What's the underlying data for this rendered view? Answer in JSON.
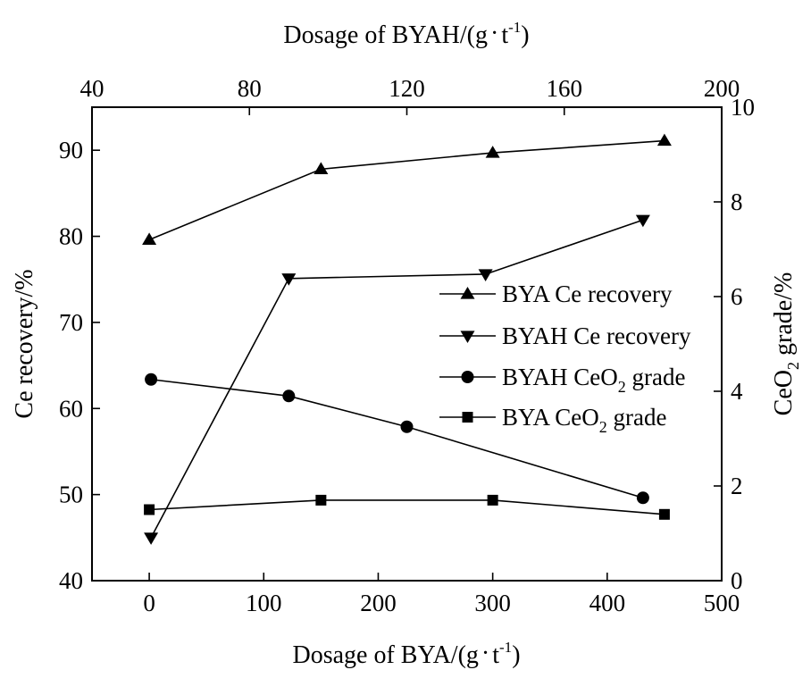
{
  "chart_data": {
    "type": "line",
    "axes": {
      "bottom": {
        "label_main": "Dosage of BYA/(g",
        "label_unit_base": "t",
        "label_unit_sup": "-1",
        "label_close": ")",
        "range": [
          -50,
          500
        ],
        "ticks": [
          0,
          100,
          200,
          300,
          400,
          500
        ],
        "tick_labels": [
          "0",
          "100",
          "200",
          "300",
          "400",
          "500"
        ]
      },
      "top": {
        "label_main": "Dosage of BYAH/(g",
        "label_unit_base": "t",
        "label_unit_sup": "-1",
        "label_close": ")",
        "range": [
          40,
          200
        ],
        "ticks": [
          40,
          80,
          120,
          160,
          200
        ],
        "tick_labels": [
          "40",
          "80",
          "120",
          "160",
          "200"
        ]
      },
      "left": {
        "label": "Ce recovery/%",
        "range": [
          40,
          95
        ],
        "ticks": [
          40,
          50,
          60,
          70,
          80,
          90
        ],
        "tick_labels": [
          "40",
          "50",
          "60",
          "70",
          "80",
          "90"
        ]
      },
      "right": {
        "label_prefix": "CeO",
        "label_sub": "2",
        "label_suffix": " grade/%",
        "range": [
          0,
          10
        ],
        "ticks": [
          0,
          2,
          4,
          6,
          8,
          10
        ],
        "tick_labels": [
          "0",
          "2",
          "4",
          "6",
          "8",
          "10"
        ]
      }
    },
    "series": [
      {
        "name": "BYA Ce recovery",
        "marker": "triangle-up",
        "x_axis": "bottom",
        "y_axis": "left",
        "x": [
          0,
          150,
          300,
          450
        ],
        "y": [
          79.6,
          87.8,
          89.7,
          91.1
        ]
      },
      {
        "name": "BYAH Ce recovery",
        "marker": "triangle-down",
        "x_axis": "top",
        "y_axis": "left",
        "x": [
          55,
          90,
          140,
          180
        ],
        "y": [
          45.0,
          75.1,
          75.6,
          81.9
        ]
      },
      {
        "name": "BYAH CeO2 grade",
        "marker": "circle",
        "x_axis": "top",
        "y_axis": "right",
        "x": [
          55,
          90,
          120,
          180
        ],
        "y": [
          4.25,
          3.9,
          3.25,
          1.75
        ]
      },
      {
        "name": "BYA CeO2 grade",
        "marker": "square",
        "x_axis": "bottom",
        "y_axis": "right",
        "x": [
          0,
          150,
          300,
          450
        ],
        "y": [
          1.5,
          1.7,
          1.7,
          1.4
        ]
      }
    ],
    "legend": {
      "position": "center-right",
      "entries": [
        {
          "marker": "triangle-up",
          "text": "BYA Ce recovery",
          "text_main": "BYA Ce recovery",
          "text_sub": "",
          "text_tail": ""
        },
        {
          "marker": "triangle-down",
          "text": "BYAH Ce recovery",
          "text_main": "BYAH Ce recovery",
          "text_sub": "",
          "text_tail": ""
        },
        {
          "marker": "circle",
          "text": "BYAH CeO2 grade",
          "text_main": "BYAH CeO",
          "text_sub": "2",
          "text_tail": " grade"
        },
        {
          "marker": "square",
          "text": "BYA CeO2 grade",
          "text_main": "BYA CeO",
          "text_sub": "2",
          "text_tail": " grade"
        }
      ]
    },
    "grid": false
  }
}
